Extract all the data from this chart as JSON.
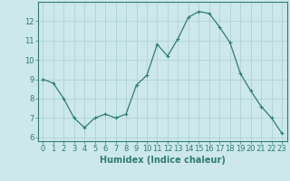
{
  "x": [
    0,
    1,
    2,
    3,
    4,
    5,
    6,
    7,
    8,
    9,
    10,
    11,
    12,
    13,
    14,
    15,
    16,
    17,
    18,
    19,
    20,
    21,
    22,
    23
  ],
  "y": [
    9.0,
    8.8,
    8.0,
    7.0,
    6.5,
    7.0,
    7.2,
    7.0,
    7.2,
    8.7,
    9.2,
    10.8,
    10.2,
    11.1,
    12.2,
    12.5,
    12.4,
    11.7,
    10.9,
    9.3,
    8.4,
    7.6,
    7.0,
    6.2
  ],
  "line_color": "#2e7d6e",
  "marker": "+",
  "marker_size": 3,
  "bg_color": "#cce8ec",
  "grid_color": "#aacdd4",
  "axis_color": "#2e7d6e",
  "xlabel": "Humidex (Indice chaleur)",
  "xlabel_fontsize": 7,
  "tick_fontsize": 6,
  "xlim": [
    -0.5,
    23.5
  ],
  "ylim": [
    5.8,
    13.0
  ],
  "yticks": [
    6,
    7,
    8,
    9,
    10,
    11,
    12
  ],
  "xticks": [
    0,
    1,
    2,
    3,
    4,
    5,
    6,
    7,
    8,
    9,
    10,
    11,
    12,
    13,
    14,
    15,
    16,
    17,
    18,
    19,
    20,
    21,
    22,
    23
  ]
}
